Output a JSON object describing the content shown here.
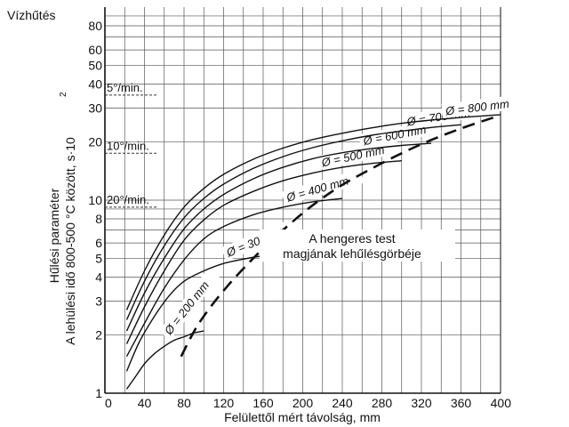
{
  "chart_data": {
    "type": "line",
    "title": "Vízhűtés",
    "xlabel": "Felülettől mért távolság, mm",
    "ylabel_line1": "Hűlési paraméter",
    "ylabel_line2": "A lehülési idő 800-500 °C között, s·10",
    "ylabel_exp": "2",
    "xlim": [
      0,
      400
    ],
    "ylim": [
      1,
      80
    ],
    "y_scale": "log",
    "grid": true,
    "x_ticks": [
      "0",
      "40",
      "80",
      "120",
      "160",
      "200",
      "240",
      "280",
      "320",
      "360",
      "400"
    ],
    "y_ticks": [
      "1",
      "2",
      "3",
      "4",
      "5",
      "6",
      "8",
      "10",
      "20",
      "30",
      "40",
      "50",
      "60",
      "80"
    ],
    "rate_marks": [
      {
        "label": "5°/min.",
        "y": 35
      },
      {
        "label": "10°/min.",
        "y": 17.5
      },
      {
        "label": "20°/min.",
        "y": 9.2
      }
    ],
    "series": [
      {
        "name": "Ø = 200 mm",
        "x": [
          22,
          30,
          40,
          50,
          60,
          70,
          80,
          90,
          100
        ],
        "y": [
          1.05,
          1.2,
          1.42,
          1.6,
          1.75,
          1.88,
          1.96,
          2.05,
          2.1
        ]
      },
      {
        "name": "Ø = 300 mm",
        "x": [
          22,
          35,
          50,
          65,
          80,
          100,
          120,
          140,
          160,
          180
        ],
        "y": [
          1.3,
          1.85,
          2.5,
          3.2,
          3.8,
          4.3,
          4.7,
          4.95,
          5.15,
          5.3
        ]
      },
      {
        "name": "Ø = 400 mm",
        "x": [
          22,
          40,
          60,
          80,
          100,
          120,
          150,
          180,
          210,
          240
        ],
        "y": [
          1.55,
          2.3,
          3.5,
          4.9,
          6.3,
          7.3,
          8.4,
          9.2,
          9.8,
          10.2
        ]
      },
      {
        "name": "Ø = 500 mm",
        "x": [
          22,
          40,
          60,
          80,
          100,
          120,
          150,
          180,
          210,
          240,
          270,
          300
        ],
        "y": [
          1.8,
          2.8,
          4.3,
          6.2,
          7.9,
          9.4,
          11.1,
          12.6,
          13.8,
          14.8,
          15.5,
          16
        ]
      },
      {
        "name": "Ø = 600 mm",
        "x": [
          22,
          40,
          60,
          80,
          100,
          120,
          150,
          180,
          210,
          240,
          270,
          300,
          330
        ],
        "y": [
          2.1,
          3.3,
          5,
          7.1,
          9,
          10.7,
          12.9,
          14.8,
          16.4,
          17.6,
          18.5,
          19.2,
          19.7
        ]
      },
      {
        "name": "Ø = 700 mm",
        "x": [
          22,
          40,
          60,
          80,
          100,
          120,
          150,
          180,
          210,
          240,
          270,
          300,
          330,
          360
        ],
        "y": [
          2.4,
          3.8,
          5.8,
          8.1,
          10.2,
          12.1,
          14.6,
          16.8,
          18.7,
          20.3,
          21.7,
          22.8,
          23.8,
          24.6
        ]
      },
      {
        "name": "Ø = 800 mm",
        "x": [
          22,
          40,
          60,
          80,
          100,
          120,
          150,
          180,
          210,
          240,
          270,
          300,
          330,
          360,
          390,
          400
        ],
        "y": [
          2.7,
          4.3,
          6.6,
          9.2,
          11.5,
          13.6,
          16.3,
          18.6,
          20.6,
          22.2,
          23.7,
          25,
          26,
          26.8,
          27.5,
          27.7
        ]
      }
    ],
    "core_curve": {
      "label_line1": "A hengeres test",
      "label_line2": "magjának lehűlésgörbéje",
      "x": [
        77,
        95,
        120,
        150,
        180,
        210,
        240,
        270,
        300,
        330,
        360,
        390,
        400
      ],
      "y": [
        1.55,
        2.3,
        3.4,
        5,
        7,
        9.4,
        12,
        14.6,
        17.5,
        20.5,
        23.5,
        26.5,
        27.5
      ]
    }
  }
}
